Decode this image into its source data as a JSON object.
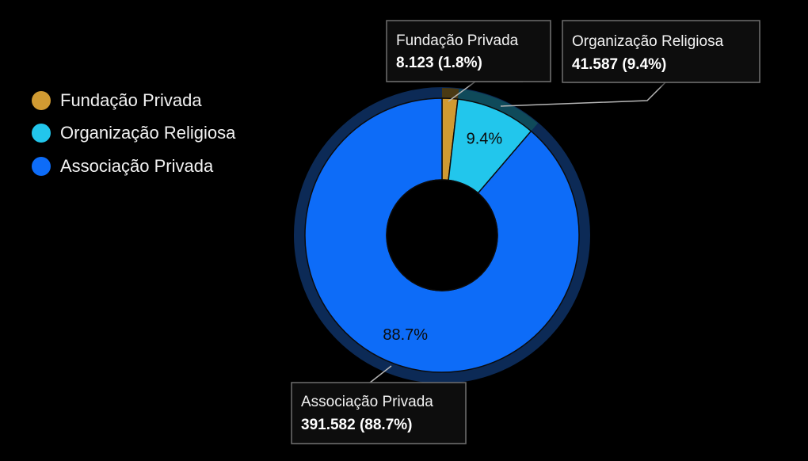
{
  "chart_data": {
    "type": "pie",
    "variant": "donut",
    "title": "",
    "legend_position": "left",
    "categories": [
      "Fundação Privada",
      "Organização Religiosa",
      "Associação Privada"
    ],
    "values": [
      8123,
      41587,
      391582
    ],
    "value_labels": [
      "8.123",
      "41.587",
      "391.582"
    ],
    "percent_labels": [
      "1.8%",
      "9.4%",
      "88.7%"
    ],
    "callouts": [
      "8.123 (1.8%)",
      "41.587 (9.4%)",
      "391.582 (88.7%)"
    ],
    "colors": [
      "#d09a32",
      "#22c6ec",
      "#0d6cf8"
    ],
    "border_color": "#0b0b0b",
    "halo_color": "#0c2a56",
    "background": "#000000"
  }
}
